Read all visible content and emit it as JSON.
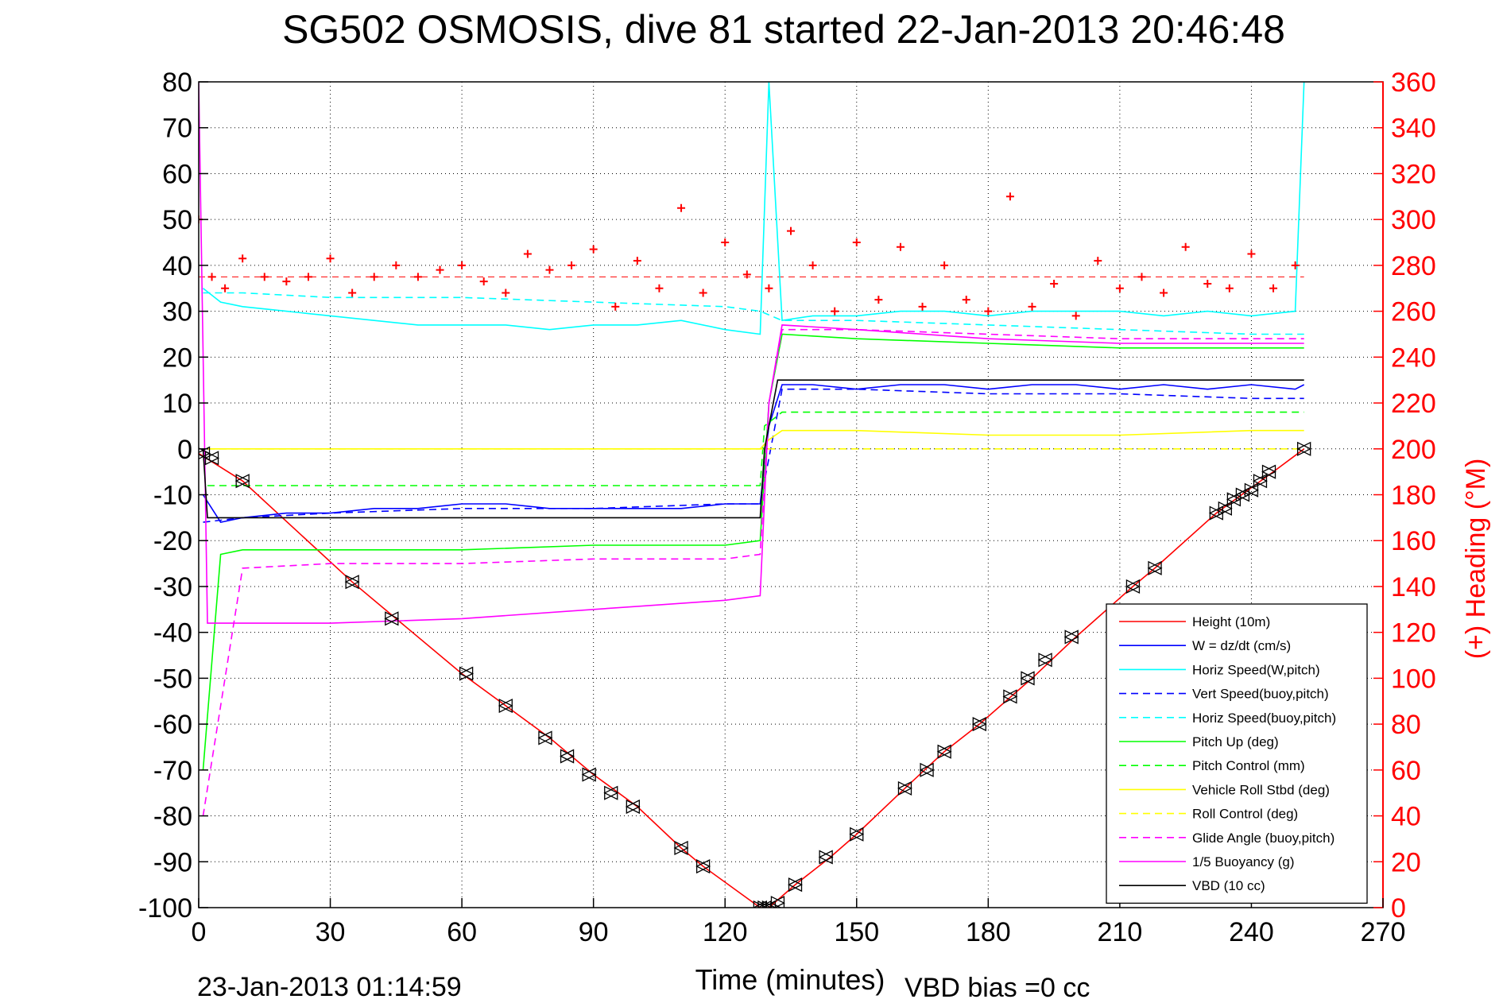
{
  "chart_data": {
    "type": "line",
    "title": "SG502 OSMOSIS, dive 81 started 22-Jan-2013 20:46:48",
    "xlabel": "Time (minutes)",
    "ylabel_right": "(+) Heading (°M)",
    "xlim": [
      0,
      270
    ],
    "ylim": [
      -100,
      80
    ],
    "ylim_right": [
      0,
      360
    ],
    "x_ticks": [
      0,
      30,
      60,
      90,
      120,
      150,
      180,
      210,
      240,
      270
    ],
    "y_ticks": [
      80,
      70,
      60,
      50,
      40,
      30,
      20,
      10,
      0,
      -10,
      -20,
      -30,
      -40,
      -50,
      -60,
      -70,
      -80,
      -90,
      -100
    ],
    "y_ticks_right": [
      360,
      340,
      320,
      300,
      280,
      260,
      240,
      220,
      200,
      180,
      160,
      140,
      120,
      100,
      80,
      60,
      40,
      20,
      0
    ],
    "grid": true,
    "legend_position": "bottom-right",
    "footer_time": "23-Jan-2013 01:14:59",
    "footer_vbd": "VBD bias =0 cc",
    "series": [
      {
        "name": "Height (10m)",
        "color": "#ff0000",
        "dash": "solid",
        "x": [
          0,
          10,
          35,
          45,
          60,
          80,
          90,
          100,
          110,
          115,
          128,
          130,
          136,
          144,
          150,
          161,
          170,
          178,
          190,
          200,
          213,
          218,
          232,
          245,
          252
        ],
        "y": [
          -1,
          -7,
          -29,
          -37,
          -49,
          -63,
          -71,
          -78,
          -87,
          -91,
          -100,
          -100,
          -95,
          -89,
          -84,
          -74,
          -66,
          -60,
          -50,
          -41,
          -30,
          -26,
          -14,
          -5,
          0
        ]
      },
      {
        "name": "W = dz/dt (cm/s)",
        "color": "#0000ff",
        "dash": "solid",
        "x": [
          1,
          5,
          10,
          20,
          30,
          40,
          50,
          60,
          70,
          80,
          90,
          100,
          110,
          120,
          128,
          130,
          133,
          140,
          150,
          160,
          170,
          180,
          190,
          200,
          210,
          220,
          230,
          240,
          250,
          252
        ],
        "y": [
          -10,
          -16,
          -15,
          -14,
          -14,
          -13,
          -13,
          -12,
          -12,
          -13,
          -13,
          -13,
          -13,
          -12,
          -12,
          5,
          14,
          14,
          13,
          14,
          14,
          13,
          14,
          14,
          13,
          14,
          13,
          14,
          13,
          14
        ]
      },
      {
        "name": "Horiz Speed(W,pitch)",
        "color": "#00ffff",
        "dash": "solid",
        "x": [
          1,
          5,
          10,
          20,
          30,
          40,
          50,
          60,
          70,
          80,
          90,
          100,
          110,
          120,
          128,
          130,
          133,
          140,
          150,
          160,
          170,
          180,
          190,
          200,
          210,
          220,
          230,
          240,
          250,
          252
        ],
        "y": [
          35,
          32,
          31,
          30,
          29,
          28,
          27,
          27,
          27,
          26,
          27,
          27,
          28,
          26,
          25,
          80,
          28,
          29,
          29,
          30,
          30,
          29,
          30,
          30,
          30,
          29,
          30,
          29,
          30,
          80
        ]
      },
      {
        "name": "Vert Speed(buoy,pitch)",
        "color": "#0000ff",
        "dash": "dashed",
        "x": [
          1,
          10,
          30,
          60,
          90,
          120,
          128,
          133,
          150,
          180,
          210,
          240,
          252
        ],
        "y": [
          -16,
          -15,
          -14,
          -13,
          -13,
          -12,
          -12,
          13,
          13,
          12,
          12,
          11,
          11
        ]
      },
      {
        "name": "Horiz Speed(buoy,pitch)",
        "color": "#00ffff",
        "dash": "dashed",
        "x": [
          1,
          10,
          30,
          60,
          90,
          120,
          128,
          133,
          150,
          180,
          210,
          240,
          252
        ],
        "y": [
          34,
          34,
          33,
          33,
          32,
          31,
          30,
          28,
          28,
          27,
          26,
          25,
          25
        ]
      },
      {
        "name": "Pitch Up (deg)",
        "color": "#00ff00",
        "dash": "solid",
        "x": [
          1,
          5,
          10,
          30,
          60,
          90,
          120,
          128,
          130,
          133,
          150,
          180,
          210,
          240,
          252
        ],
        "y": [
          -70,
          -23,
          -22,
          -22,
          -22,
          -21,
          -21,
          -20,
          10,
          25,
          24,
          23,
          22,
          22,
          22
        ]
      },
      {
        "name": "Pitch Control (mm)",
        "color": "#00ff00",
        "dash": "dashed",
        "x": [
          2,
          128,
          129,
          133,
          252
        ],
        "y": [
          -8,
          -8,
          5,
          8,
          8
        ]
      },
      {
        "name": "Vehicle Roll Stbd (deg)",
        "color": "#ffff00",
        "dash": "solid",
        "x": [
          2,
          10,
          30,
          60,
          90,
          120,
          128,
          130,
          133,
          150,
          180,
          210,
          240,
          252
        ],
        "y": [
          0,
          0,
          0,
          0,
          0,
          0,
          0,
          2,
          4,
          4,
          3,
          3,
          4,
          4
        ]
      },
      {
        "name": "Roll Control (deg)",
        "color": "#ffff00",
        "dash": "dashed",
        "x": [
          2,
          128,
          130,
          252
        ],
        "y": [
          0,
          0,
          0,
          0
        ]
      },
      {
        "name": "Glide Angle (buoy,pitch)",
        "color": "#ff00ff",
        "dash": "dashed",
        "x": [
          1,
          10,
          30,
          60,
          90,
          120,
          128,
          130,
          133,
          150,
          180,
          210,
          240,
          252
        ],
        "y": [
          -80,
          -26,
          -25,
          -25,
          -24,
          -24,
          -23,
          10,
          26,
          26,
          25,
          24,
          24,
          24
        ]
      },
      {
        "name": "1/5 Buoyancy (g)",
        "color": "#ff00ff",
        "dash": "solid",
        "x": [
          0,
          2,
          10,
          30,
          60,
          90,
          120,
          128,
          130,
          133,
          150,
          180,
          210,
          240,
          252
        ],
        "y": [
          80,
          -38,
          -38,
          -38,
          -37,
          -35,
          -33,
          -32,
          10,
          27,
          26,
          24,
          23,
          23,
          23
        ]
      },
      {
        "name": "VBD (10 cc)",
        "color": "#000000",
        "dash": "solid",
        "x": [
          1,
          2,
          128,
          129,
          132,
          252
        ],
        "y": [
          0,
          -15,
          -15,
          0,
          15,
          15
        ]
      }
    ],
    "heading_series": {
      "name": "Heading",
      "color": "#ff0000",
      "marker": "+",
      "mean_heading": 275,
      "x": [
        0,
        3,
        6,
        10,
        15,
        20,
        25,
        30,
        35,
        40,
        45,
        50,
        55,
        60,
        65,
        70,
        75,
        80,
        85,
        90,
        95,
        100,
        105,
        110,
        115,
        120,
        125,
        130,
        135,
        140,
        145,
        150,
        155,
        160,
        165,
        170,
        175,
        180,
        185,
        190,
        195,
        200,
        205,
        210,
        215,
        220,
        225,
        230,
        235,
        240,
        245,
        250
      ],
      "y": [
        300,
        275,
        270,
        283,
        275,
        273,
        275,
        283,
        268,
        275,
        280,
        275,
        278,
        280,
        273,
        268,
        285,
        278,
        280,
        287,
        262,
        282,
        270,
        305,
        268,
        290,
        276,
        270,
        295,
        280,
        260,
        290,
        265,
        288,
        262,
        280,
        265,
        260,
        310,
        262,
        272,
        258,
        282,
        270,
        275,
        268,
        288,
        272,
        270,
        285,
        270,
        280
      ]
    },
    "markers": {
      "name": "dive markers",
      "x": [
        1,
        3,
        10,
        35,
        44,
        61,
        70,
        79,
        84,
        89,
        94,
        99,
        110,
        115,
        128,
        129,
        130,
        132,
        136,
        143,
        150,
        161,
        166,
        170,
        178,
        185,
        189,
        193,
        199,
        213,
        218,
        232,
        234,
        236,
        238,
        240,
        242,
        244,
        252
      ],
      "y": [
        -1,
        -2,
        -7,
        -29,
        -37,
        -49,
        -56,
        -63,
        -67,
        -71,
        -75,
        -78,
        -87,
        -91,
        -100,
        -100,
        -100,
        -99,
        -95,
        -89,
        -84,
        -74,
        -70,
        -66,
        -60,
        -54,
        -50,
        -46,
        -41,
        -30,
        -26,
        -14,
        -13,
        -11,
        -10,
        -9,
        -7,
        -5,
        0
      ]
    }
  }
}
